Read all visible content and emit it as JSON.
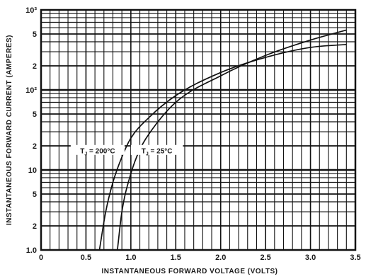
{
  "chart_data": {
    "type": "line",
    "title": "",
    "xlabel": "INSTANTANEOUS FORWARD VOLTAGE (VOLTS)",
    "ylabel": "INSTANTANEOUS FORWARD CURRENT (AMPERES)",
    "xlim": [
      0,
      3.5
    ],
    "ylim": [
      1,
      1000
    ],
    "yscale": "log",
    "grid": true,
    "x_ticks": [
      "0",
      "0.5",
      "1.0",
      "1.5",
      "2.0",
      "2.5",
      "3.0",
      "3.5"
    ],
    "y_ticks": [
      {
        "v": 1,
        "t": "1.0"
      },
      {
        "v": 2,
        "t": "2"
      },
      {
        "v": 5,
        "t": "5"
      },
      {
        "v": 10,
        "t": "10"
      },
      {
        "v": 20,
        "t": "2"
      },
      {
        "v": 50,
        "t": "5"
      },
      {
        "v": 100,
        "t": "10²"
      },
      {
        "v": 200,
        "t": "2"
      },
      {
        "v": 500,
        "t": "5"
      },
      {
        "v": 1000,
        "t": "10³"
      }
    ],
    "series": [
      {
        "name": "T_J = 200°C",
        "x": [
          0.65,
          0.72,
          0.8,
          0.9,
          1.0,
          1.2,
          1.5,
          2.0,
          2.5,
          3.0,
          3.4
        ],
        "y": [
          1.0,
          3.0,
          7.0,
          14.5,
          25,
          45,
          85,
          165,
          255,
          340,
          370
        ]
      },
      {
        "name": "T_J = 25°C",
        "x": [
          0.85,
          0.9,
          1.0,
          1.1,
          1.2,
          1.5,
          2.0,
          2.5,
          3.0,
          3.4
        ],
        "y": [
          1.0,
          3.0,
          9.0,
          18,
          28,
          70,
          150,
          270,
          420,
          560
        ]
      }
    ]
  }
}
